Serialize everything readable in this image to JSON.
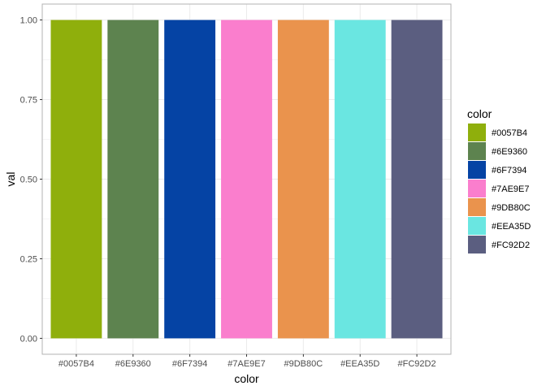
{
  "chart_data": {
    "type": "bar",
    "categories": [
      "#0057B4",
      "#6E9360",
      "#6F7394",
      "#7AE9E7",
      "#9DB80C",
      "#EEA35D",
      "#FC92D2"
    ],
    "values": [
      1,
      1,
      1,
      1,
      1,
      1,
      1
    ],
    "fill_colors": [
      "#8FAF0C",
      "#5D834F",
      "#0543A4",
      "#FA7ECD",
      "#EA934D",
      "#6AE6E1",
      "#5B5E80"
    ],
    "xlabel": "color",
    "ylabel": "val",
    "ylim": [
      0,
      1
    ],
    "y_ticks": [
      "0.00",
      "0.25",
      "0.50",
      "0.75",
      "1.00"
    ],
    "y_tick_values": [
      0,
      0.25,
      0.5,
      0.75,
      1
    ],
    "grid": true,
    "panel_border": "#b3b3b3",
    "grid_color": "#ebebeb",
    "legend": {
      "title": "color",
      "position": "right",
      "entries": [
        "#0057B4",
        "#6E9360",
        "#6F7394",
        "#7AE9E7",
        "#9DB80C",
        "#EEA35D",
        "#FC92D2"
      ]
    }
  }
}
